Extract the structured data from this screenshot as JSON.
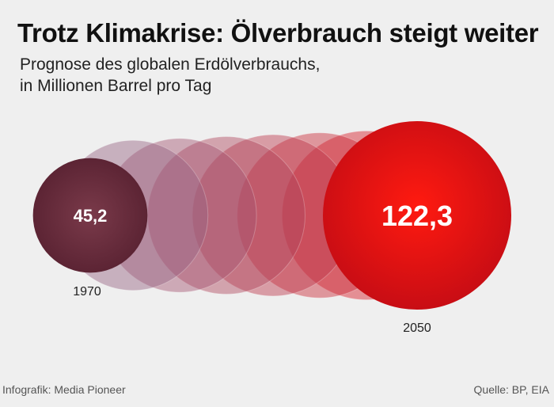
{
  "title": "Trotz Klimakrise: Ölverbrauch steigt weiter",
  "subtitle": "Prognose des globalen Erdölverbrauchs,\nin Millionen Barrel pro Tag",
  "footer": {
    "credit": "Infografik: Media Pioneer",
    "source": "Quelle: BP, EIA"
  },
  "chart_data": {
    "type": "bubble",
    "title": "Trotz Klimakrise: Ölverbrauch steigt weiter",
    "subtitle": "Prognose des globalen Erdölverbrauchs, in Millionen Barrel pro Tag",
    "points": [
      {
        "year": "1970",
        "value": 45.2,
        "label": "45,2"
      },
      {
        "year": "2050",
        "value": 122.3,
        "label": "122,3"
      }
    ],
    "intermediate_bubbles": 6,
    "colors": {
      "start": "#6b2f3e",
      "end": "#e30d12",
      "ghost": "#8a7296"
    }
  }
}
